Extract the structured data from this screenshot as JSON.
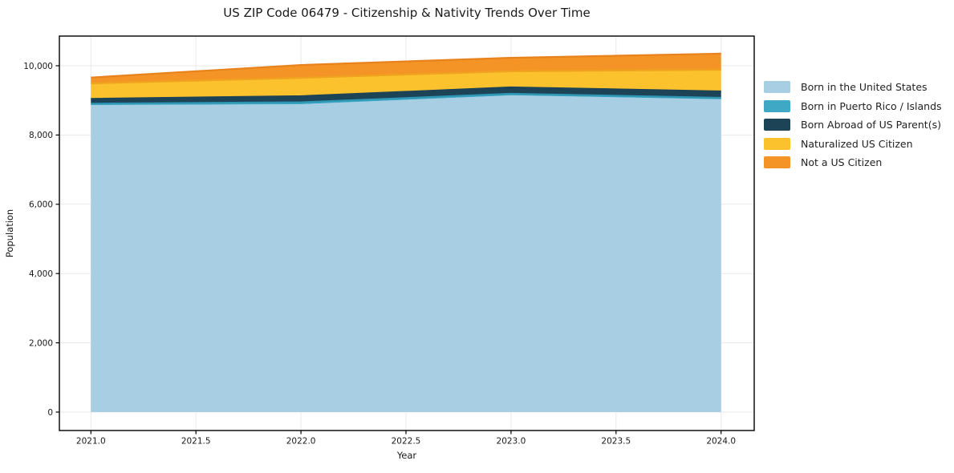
{
  "chart_data": {
    "type": "area",
    "stacked": true,
    "title": "US ZIP Code 06479 - Citizenship & Nativity Trends Over Time",
    "xlabel": "Year",
    "ylabel": "Population",
    "x": [
      2021,
      2022,
      2023,
      2024
    ],
    "series": [
      {
        "name": "Born in the United States",
        "color": "#a7cee3",
        "edge": "#a7cee3",
        "values": [
          8865,
          8890,
          9145,
          9030
        ]
      },
      {
        "name": "Born in Puerto Rico / Islands",
        "color": "#3fa8c5",
        "edge": "#2f96b4",
        "values": [
          40,
          55,
          45,
          45
        ]
      },
      {
        "name": "Born Abroad of US Parent(s)",
        "color": "#1d4356",
        "edge": "#1d4356",
        "values": [
          140,
          175,
          185,
          185
        ]
      },
      {
        "name": "Naturalized US Citizen",
        "color": "#fcc22d",
        "edge": "#f0a31f",
        "values": [
          445,
          530,
          465,
          625
        ]
      },
      {
        "name": "Not a US Citizen",
        "color": "#f59426",
        "edge": "#e8821c",
        "values": [
          170,
          370,
          390,
          465
        ]
      }
    ],
    "totals": [
      9660,
      10020,
      10230,
      10350
    ],
    "xticks": [
      {
        "v": 2021.0,
        "label": "2021.0"
      },
      {
        "v": 2021.5,
        "label": "2021.5"
      },
      {
        "v": 2022.0,
        "label": "2022.0"
      },
      {
        "v": 2022.5,
        "label": "2022.5"
      },
      {
        "v": 2023.0,
        "label": "2023.0"
      },
      {
        "v": 2023.5,
        "label": "2023.5"
      },
      {
        "v": 2024.0,
        "label": "2024.0"
      }
    ],
    "yticks": [
      {
        "v": 0,
        "label": "0"
      },
      {
        "v": 2000,
        "label": "2,000"
      },
      {
        "v": 4000,
        "label": "4,000"
      },
      {
        "v": 6000,
        "label": "6,000"
      },
      {
        "v": 8000,
        "label": "8,000"
      },
      {
        "v": 10000,
        "label": "10,000"
      }
    ],
    "xlim": [
      2020.85,
      2024.15
    ],
    "ylim": [
      -500,
      10870
    ],
    "grid": true,
    "grid_color": "#e9e9e9",
    "spine_color": "#000000",
    "legend_position": "right-outside",
    "background": "#ffffff"
  }
}
